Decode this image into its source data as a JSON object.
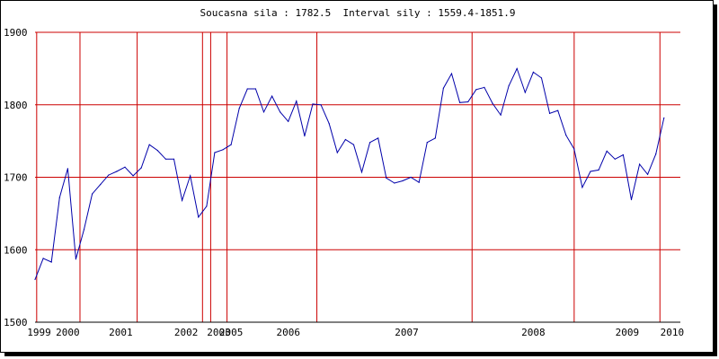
{
  "chart_data": {
    "type": "line",
    "title": "Soucasna sila : 1782.5  Interval sily : 1559.4-1851.9",
    "ylim": [
      1500,
      1900
    ],
    "yticks": [
      1500,
      1600,
      1700,
      1800,
      1900
    ],
    "grid": true,
    "colors": {
      "line": "#0000aa",
      "grid": "#cc0000",
      "axis": "#000000"
    },
    "x_domain": [
      0,
      79
    ],
    "x_tick_labels": [
      {
        "label": "1999",
        "x": 0.5
      },
      {
        "label": "2000",
        "x": 4.0
      },
      {
        "label": "2001",
        "x": 10.5
      },
      {
        "label": "2002",
        "x": 18.5
      },
      {
        "label": "2003",
        "x": 22.5
      },
      {
        "label": "2005",
        "x": 24.0
      },
      {
        "label": "2006",
        "x": 31.0
      },
      {
        "label": "2007",
        "x": 45.5
      },
      {
        "label": "2008",
        "x": 61.0
      },
      {
        "label": "2009",
        "x": 72.5
      },
      {
        "label": "2010",
        "x": 78.0
      }
    ],
    "vertical_gridlines_x": [
      0.2,
      5.5,
      12.5,
      20.5,
      21.5,
      23.5,
      34.5,
      53.5,
      66.0,
      76.5
    ],
    "series": [
      {
        "values": [
          1559,
          1588,
          1583,
          1672,
          1712,
          1587,
          1628,
          1677,
          1690,
          1703,
          1708,
          1714,
          1702,
          1713,
          1745,
          1737,
          1725,
          1725,
          1668,
          1702,
          1645,
          1660,
          1734,
          1738,
          1745,
          1795,
          1822,
          1822,
          1790,
          1812,
          1790,
          1777,
          1805,
          1757,
          1801,
          1800,
          1774,
          1734,
          1752,
          1745,
          1707,
          1748,
          1754,
          1699,
          1692,
          1695,
          1700,
          1693,
          1748,
          1754,
          1823,
          1843,
          1803,
          1804,
          1821,
          1824,
          1802,
          1786,
          1826,
          1850,
          1817,
          1845,
          1837,
          1788,
          1792,
          1758,
          1739,
          1686,
          1708,
          1710,
          1736,
          1725,
          1731,
          1669,
          1718,
          1704,
          1732,
          1782
        ]
      }
    ]
  }
}
